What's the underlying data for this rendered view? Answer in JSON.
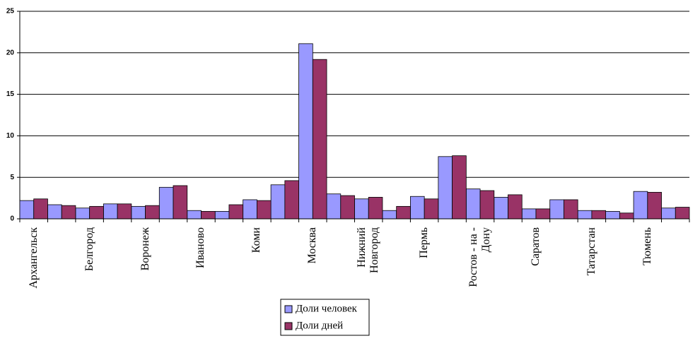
{
  "chart_data": {
    "type": "bar",
    "categories": [
      "Архангельск",
      null,
      "Белгород",
      null,
      "Воронеж",
      null,
      "Иваново",
      null,
      "Коми",
      null,
      "Москва",
      null,
      "Нижний Новгород",
      null,
      "Пермь",
      null,
      "Ростов - на - Дону",
      null,
      "Саратов",
      null,
      "Татарстан",
      null,
      "Тюмень",
      null
    ],
    "series": [
      {
        "name": "Доли человек",
        "color": "#9999ff",
        "values": [
          2.2,
          1.7,
          1.3,
          1.8,
          1.5,
          3.8,
          1.0,
          0.9,
          2.3,
          4.1,
          21.1,
          3.0,
          2.4,
          1.0,
          2.7,
          7.5,
          3.6,
          2.6,
          1.2,
          2.3,
          1.0,
          0.9,
          3.3,
          1.3
        ]
      },
      {
        "name": "Доли дней",
        "color": "#993366",
        "values": [
          2.4,
          1.6,
          1.5,
          1.8,
          1.6,
          4.0,
          0.9,
          1.7,
          2.2,
          4.6,
          19.2,
          2.8,
          2.6,
          1.5,
          2.4,
          7.6,
          3.4,
          2.9,
          1.2,
          2.3,
          1.0,
          0.7,
          3.2,
          1.4
        ]
      }
    ],
    "ylim": [
      0,
      25
    ],
    "yticks": [
      0,
      5,
      10,
      15,
      20,
      25
    ],
    "grid": true
  }
}
